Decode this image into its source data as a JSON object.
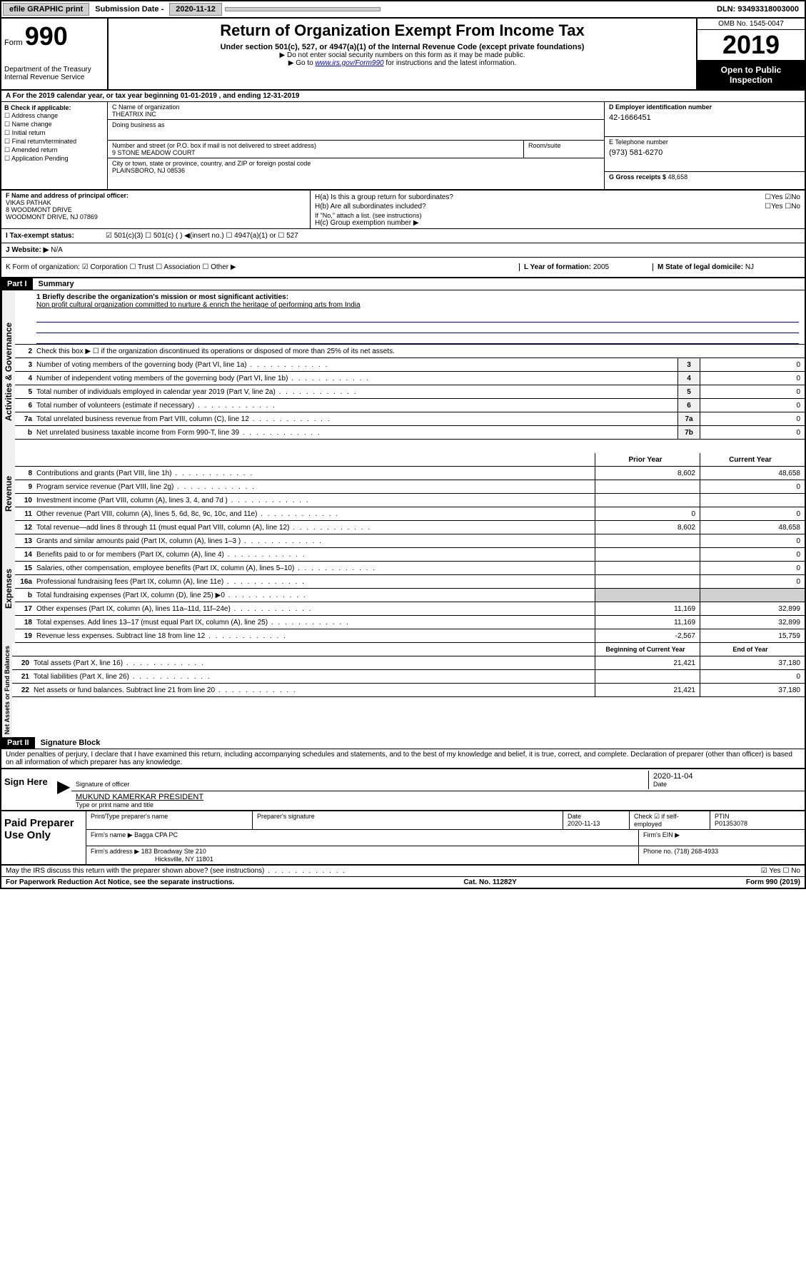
{
  "topbar": {
    "efile": "efile GRAPHIC print",
    "subdate_label": "Submission Date - ",
    "subdate": "2020-11-12",
    "dln_label": "DLN: ",
    "dln": "93493318003000"
  },
  "header": {
    "form_label": "Form",
    "form_num": "990",
    "dept": "Department of the Treasury\nInternal Revenue Service",
    "title": "Return of Organization Exempt From Income Tax",
    "subtitle": "Under section 501(c), 527, or 4947(a)(1) of the Internal Revenue Code (except private foundations)",
    "note1": "▶ Do not enter social security numbers on this form as it may be made public.",
    "note2_pre": "▶ Go to ",
    "note2_link": "www.irs.gov/Form990",
    "note2_post": " for instructions and the latest information.",
    "omb": "OMB No. 1545-0047",
    "year": "2019",
    "open": "Open to Public Inspection"
  },
  "sectionA": "A   For the 2019 calendar year, or tax year beginning 01-01-2019    , and ending 12-31-2019",
  "colB": {
    "label": "B Check if applicable:",
    "items": [
      "☐ Address change",
      "☐ Name change",
      "☐ Initial return",
      "☐ Final return/terminated",
      "☐ Amended return",
      "☐ Application Pending"
    ]
  },
  "colC": {
    "name_label": "C Name of organization",
    "name": "THEATRIX INC",
    "dba_label": "Doing business as",
    "addr_label": "Number and street (or P.O. box if mail is not delivered to street address)",
    "addr": "9 STONE MEADOW COURT",
    "room_label": "Room/suite",
    "city_label": "City or town, state or province, country, and ZIP or foreign postal code",
    "city": "PLAINSBORO, NJ  08536"
  },
  "colD": {
    "ein_label": "D Employer identification number",
    "ein": "42-1666451",
    "phone_label": "E Telephone number",
    "phone": "(973) 581-6270",
    "gross_label": "G Gross receipts $ ",
    "gross": "48,658"
  },
  "rowF": {
    "label": "F  Name and address of principal officer:",
    "name": "VIKAS PATHAK",
    "addr1": "8 WOODMONT DRIVE",
    "addr2": "WOODMONT DRIVE, NJ  07869"
  },
  "rowH": {
    "ha": "H(a)  Is this a group return for subordinates?",
    "hb": "H(b)  Are all subordinates included?",
    "hb_note": "If \"No,\" attach a list. (see instructions)",
    "hc": "H(c)  Group exemption number ▶",
    "yes": "Yes",
    "no": "No"
  },
  "rowI": {
    "label": "I   Tax-exempt status:",
    "opts": "501(c)(3)       ☐   501(c) (  ) ◀(insert no.)       ☐   4947(a)(1) or    ☐  527"
  },
  "rowJ": {
    "label": "J   Website: ▶",
    "val": "N/A"
  },
  "rowK": {
    "label": "K Form of organization:  ☑ Corporation  ☐ Trust  ☐ Association  ☐ Other ▶",
    "l": "L Year of formation: ",
    "l_val": "2005",
    "m": "M State of legal domicile: ",
    "m_val": "NJ"
  },
  "part1": {
    "label": "Part I",
    "title": "Summary",
    "line1_label": "1  Briefly describe the organization's mission or most significant activities:",
    "line1_text": "Non profit cultural organization committed to nurture & enrich the heritage of performing arts from India",
    "line2": "Check this box ▶ ☐  if the organization discontinued its operations or disposed of more than 25% of its net assets.",
    "vert_gov": "Activities & Governance",
    "vert_rev": "Revenue",
    "vert_exp": "Expenses",
    "vert_net": "Net Assets or Fund Balances",
    "prior": "Prior Year",
    "current": "Current Year",
    "begin": "Beginning of Current Year",
    "end": "End of Year"
  },
  "lines_gov": [
    {
      "n": "3",
      "t": "Number of voting members of the governing body (Part VI, line 1a)",
      "box": "3",
      "v": "0"
    },
    {
      "n": "4",
      "t": "Number of independent voting members of the governing body (Part VI, line 1b)",
      "box": "4",
      "v": "0"
    },
    {
      "n": "5",
      "t": "Total number of individuals employed in calendar year 2019 (Part V, line 2a)",
      "box": "5",
      "v": "0"
    },
    {
      "n": "6",
      "t": "Total number of volunteers (estimate if necessary)",
      "box": "6",
      "v": "0"
    },
    {
      "n": "7a",
      "t": "Total unrelated business revenue from Part VIII, column (C), line 12",
      "box": "7a",
      "v": "0"
    },
    {
      "n": "b",
      "t": "Net unrelated business taxable income from Form 990-T, line 39",
      "box": "7b",
      "v": "0"
    }
  ],
  "lines_rev": [
    {
      "n": "8",
      "t": "Contributions and grants (Part VIII, line 1h)",
      "p": "8,602",
      "c": "48,658"
    },
    {
      "n": "9",
      "t": "Program service revenue (Part VIII, line 2g)",
      "p": "",
      "c": "0"
    },
    {
      "n": "10",
      "t": "Investment income (Part VIII, column (A), lines 3, 4, and 7d )",
      "p": "",
      "c": ""
    },
    {
      "n": "11",
      "t": "Other revenue (Part VIII, column (A), lines 5, 6d, 8c, 9c, 10c, and 11e)",
      "p": "0",
      "c": "0"
    },
    {
      "n": "12",
      "t": "Total revenue—add lines 8 through 11 (must equal Part VIII, column (A), line 12)",
      "p": "8,602",
      "c": "48,658"
    }
  ],
  "lines_exp": [
    {
      "n": "13",
      "t": "Grants and similar amounts paid (Part IX, column (A), lines 1–3 )",
      "p": "",
      "c": "0"
    },
    {
      "n": "14",
      "t": "Benefits paid to or for members (Part IX, column (A), line 4)",
      "p": "",
      "c": "0"
    },
    {
      "n": "15",
      "t": "Salaries, other compensation, employee benefits (Part IX, column (A), lines 5–10)",
      "p": "",
      "c": "0"
    },
    {
      "n": "16a",
      "t": "Professional fundraising fees (Part IX, column (A), line 11e)",
      "p": "",
      "c": "0"
    },
    {
      "n": "b",
      "t": "Total fundraising expenses (Part IX, column (D), line 25) ▶0",
      "p": "shaded",
      "c": "shaded"
    },
    {
      "n": "17",
      "t": "Other expenses (Part IX, column (A), lines 11a–11d, 11f–24e)",
      "p": "11,169",
      "c": "32,899"
    },
    {
      "n": "18",
      "t": "Total expenses. Add lines 13–17 (must equal Part IX, column (A), line 25)",
      "p": "11,169",
      "c": "32,899"
    },
    {
      "n": "19",
      "t": "Revenue less expenses. Subtract line 18 from line 12",
      "p": "-2,567",
      "c": "15,759"
    }
  ],
  "lines_net": [
    {
      "n": "20",
      "t": "Total assets (Part X, line 16)",
      "p": "21,421",
      "c": "37,180"
    },
    {
      "n": "21",
      "t": "Total liabilities (Part X, line 26)",
      "p": "",
      "c": "0"
    },
    {
      "n": "22",
      "t": "Net assets or fund balances. Subtract line 21 from line 20",
      "p": "21,421",
      "c": "37,180"
    }
  ],
  "part2": {
    "label": "Part II",
    "title": "Signature Block",
    "decl": "Under penalties of perjury, I declare that I have examined this return, including accompanying schedules and statements, and to the best of my knowledge and belief, it is true, correct, and complete. Declaration of preparer (other than officer) is based on all information of which preparer has any knowledge."
  },
  "sign": {
    "label": "Sign Here",
    "sig_label": "Signature of officer",
    "date": "2020-11-04",
    "date_label": "Date",
    "name": "MUKUND KAMERKAR PRESIDENT",
    "name_label": "Type or print name and title"
  },
  "prep": {
    "label": "Paid Preparer Use Only",
    "h1": "Print/Type preparer's name",
    "h2": "Preparer's signature",
    "h3": "Date",
    "h3v": "2020-11-13",
    "h4": "Check ☑ if self-employed",
    "h5": "PTIN",
    "h5v": "P01353078",
    "firm_label": "Firm's name      ▶",
    "firm": "Bagga CPA PC",
    "ein_label": "Firm's EIN ▶",
    "addr_label": "Firm's address ▶",
    "addr": "183 Broadway Ste 210",
    "addr2": "Hicksville, NY  11801",
    "phone_label": "Phone no. ",
    "phone": "(718) 268-4933"
  },
  "bottom": {
    "q": "May the IRS discuss this return with the preparer shown above? (see instructions)",
    "yes": "Yes",
    "no": "No"
  },
  "footer": {
    "left": "For Paperwork Reduction Act Notice, see the separate instructions.",
    "mid": "Cat. No. 11282Y",
    "right": "Form 990 (2019)"
  }
}
